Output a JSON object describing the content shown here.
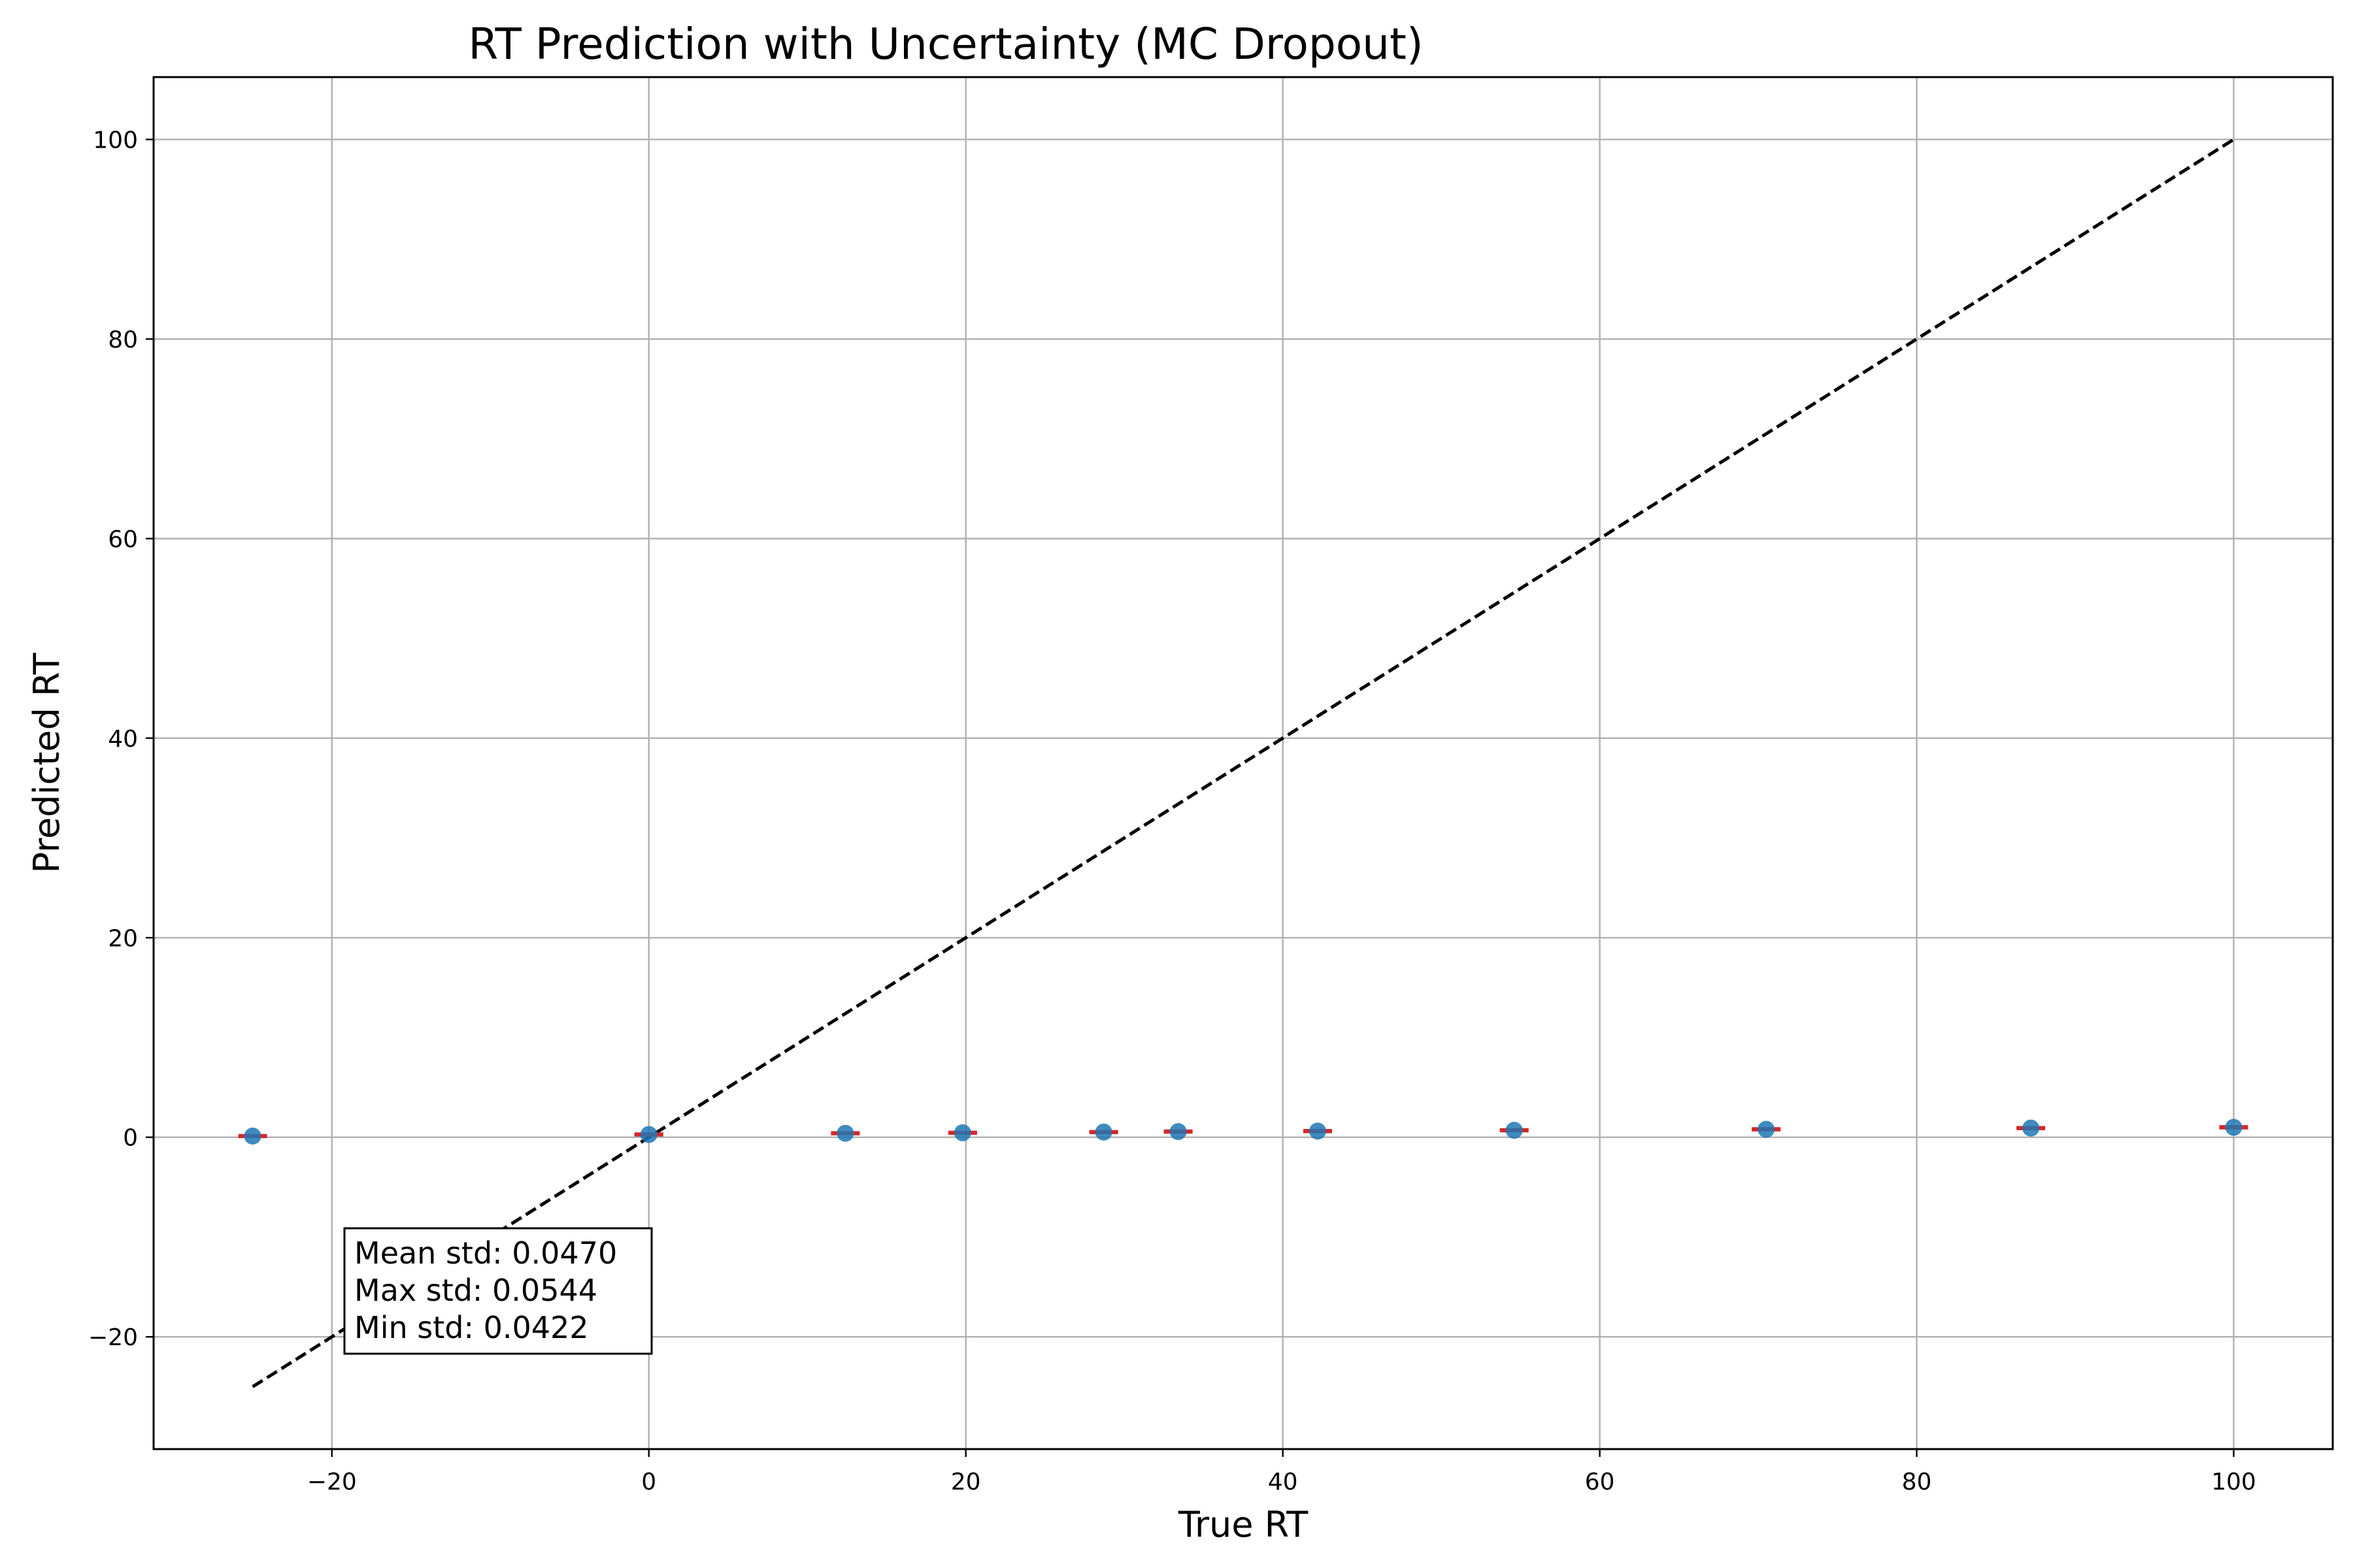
{
  "chart_data": {
    "type": "scatter",
    "title": "RT Prediction with Uncertainty (MC Dropout)",
    "xlabel": "True RT",
    "ylabel": "Predicted RT",
    "xlim": [
      -31.25,
      106.25
    ],
    "ylim": [
      -31.25,
      106.25
    ],
    "xticks": [
      -20,
      0,
      20,
      40,
      60,
      80,
      100
    ],
    "yticks": [
      -20,
      0,
      20,
      40,
      60,
      80,
      100
    ],
    "xtick_labels": [
      "−20",
      "0",
      "20",
      "40",
      "60",
      "80",
      "100"
    ],
    "ytick_labels": [
      "−20",
      "0",
      "20",
      "40",
      "60",
      "80",
      "100"
    ],
    "grid": true,
    "series": [
      {
        "kind": "errorbar-scatter",
        "color": "#1f77b4",
        "error_color": "#d62728",
        "x": [
          -25,
          0,
          12.4,
          19.8,
          28.7,
          33.4,
          42.2,
          54.6,
          70.5,
          87.2,
          100
        ],
        "y": [
          0.12,
          0.28,
          0.4,
          0.45,
          0.52,
          0.57,
          0.62,
          0.7,
          0.8,
          0.92,
          1.0
        ],
        "yerr": [
          0.0422,
          0.0445,
          0.045,
          0.046,
          0.047,
          0.047,
          0.048,
          0.048,
          0.049,
          0.0455,
          0.0544
        ]
      },
      {
        "kind": "reference-line",
        "color": "#000000",
        "style": "dashed",
        "x": [
          -25,
          100
        ],
        "y": [
          -25,
          100
        ]
      }
    ],
    "annotation": {
      "lines": [
        "Mean std: 0.0470",
        "Max std: 0.0544",
        "Min std: 0.0422"
      ],
      "placement": "lower-left"
    }
  }
}
